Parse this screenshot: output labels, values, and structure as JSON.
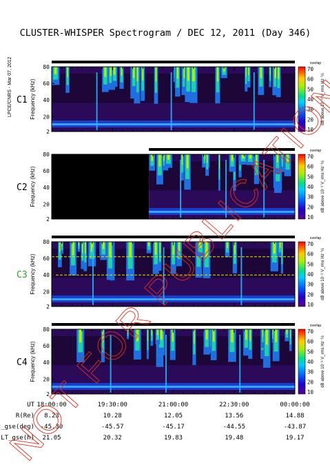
{
  "title": "CLUSTER-WHISPER Spectrogram / DEC 12, 2011 (Day 346)",
  "side_stamp": "LPCE/CNRS - Mar 07, 2012",
  "watermark": "NOT FOR PUBLICATION",
  "chart_data": {
    "type": "heatmap",
    "x_ticks": [
      "18:00:00",
      "19:30:00",
      "21:00:00",
      "22:30:00",
      "00:00:00"
    ],
    "y_ticks": [
      "80",
      "60",
      "40",
      "20",
      "2"
    ],
    "ylabel": "Frequency (kHz)",
    "ylim": [
      2,
      80
    ],
    "colorbar": {
      "top_label": "overlap",
      "ticks": [
        "70",
        "60",
        "50",
        "40",
        "30",
        "20",
        "10"
      ],
      "label": "dB above 10⁻⁸ V_rms Hz⁻½",
      "range": [
        10,
        70
      ]
    },
    "panels": [
      {
        "name": "C1",
        "label_color": "#000000",
        "data_start_fraction": 0.0,
        "guide_lines_khz": []
      },
      {
        "name": "C2",
        "label_color": "#000000",
        "data_start_fraction": 0.4,
        "guide_lines_khz": []
      },
      {
        "name": "C3",
        "label_color": "#22aa22",
        "data_start_fraction": 0.0,
        "guide_lines_khz": [
          62,
          40
        ]
      },
      {
        "name": "C4",
        "label_color": "#000000",
        "data_start_fraction": 0.0,
        "guide_lines_khz": []
      }
    ],
    "ephemeris": [
      {
        "label": "UT",
        "values": [
          "18:00:00",
          "19:30:00",
          "21:00:00",
          "22:30:00",
          "00:00:00"
        ]
      },
      {
        "label": "R(Re)",
        "values": [
          "8.23",
          "10.28",
          "12.05",
          "13.56",
          "14.88"
        ]
      },
      {
        "label": "Lat_gse(deg)",
        "values": [
          "-45.30",
          "-45.57",
          "-45.17",
          "-44.55",
          "-43.87"
        ]
      },
      {
        "label": "LT_gse(h)",
        "values": [
          "21.05",
          "20.32",
          "19.83",
          "19.48",
          "19.17"
        ]
      }
    ]
  }
}
